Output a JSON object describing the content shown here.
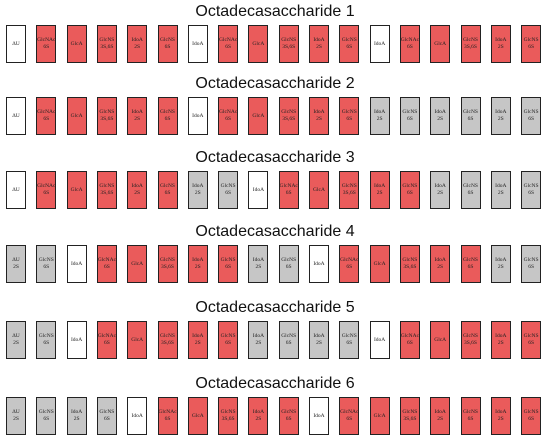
{
  "colors": {
    "red": "#ea5b5b",
    "gray": "#c6c6c6",
    "white": "#ffffff"
  },
  "rows": [
    {
      "title": "Octadecasaccharide 1",
      "units": [
        {
          "l1": "ΔU",
          "l2": "",
          "c": "white"
        },
        {
          "l1": "GlcNAc",
          "l2": "6S",
          "c": "red"
        },
        {
          "l1": "GlcA",
          "l2": "",
          "c": "red"
        },
        {
          "l1": "GlcNS",
          "l2": "3S,6S",
          "c": "red"
        },
        {
          "l1": "IdoA",
          "l2": "2S",
          "c": "red"
        },
        {
          "l1": "GlcNS",
          "l2": "6S",
          "c": "red"
        },
        {
          "l1": "IdoA",
          "l2": "",
          "c": "white"
        },
        {
          "l1": "GlcNAc",
          "l2": "6S",
          "c": "red"
        },
        {
          "l1": "GlcA",
          "l2": "",
          "c": "red"
        },
        {
          "l1": "GlcNS",
          "l2": "3S,6S",
          "c": "red"
        },
        {
          "l1": "IdoA",
          "l2": "2S",
          "c": "red"
        },
        {
          "l1": "GlcNS",
          "l2": "6S",
          "c": "red"
        },
        {
          "l1": "IdoA",
          "l2": "",
          "c": "white"
        },
        {
          "l1": "GlcNAc",
          "l2": "6S",
          "c": "red"
        },
        {
          "l1": "GlcA",
          "l2": "",
          "c": "red"
        },
        {
          "l1": "GlcNS",
          "l2": "3S,6S",
          "c": "red"
        },
        {
          "l1": "IdoA",
          "l2": "2S",
          "c": "red"
        },
        {
          "l1": "GlcNS",
          "l2": "6S",
          "c": "red"
        }
      ]
    },
    {
      "title": "Octadecasaccharide 2",
      "units": [
        {
          "l1": "ΔU",
          "l2": "",
          "c": "white"
        },
        {
          "l1": "GlcNAc",
          "l2": "6S",
          "c": "red"
        },
        {
          "l1": "GlcA",
          "l2": "",
          "c": "red"
        },
        {
          "l1": "GlcNS",
          "l2": "3S,6S",
          "c": "red"
        },
        {
          "l1": "IdoA",
          "l2": "2S",
          "c": "red"
        },
        {
          "l1": "GlcNS",
          "l2": "6S",
          "c": "red"
        },
        {
          "l1": "IdoA",
          "l2": "",
          "c": "white"
        },
        {
          "l1": "GlcNAc",
          "l2": "6S",
          "c": "red"
        },
        {
          "l1": "GlcA",
          "l2": "",
          "c": "red"
        },
        {
          "l1": "GlcNS",
          "l2": "3S,6S",
          "c": "red"
        },
        {
          "l1": "IdoA",
          "l2": "2S",
          "c": "red"
        },
        {
          "l1": "GlcNS",
          "l2": "6S",
          "c": "red"
        },
        {
          "l1": "IdoA",
          "l2": "2S",
          "c": "gray"
        },
        {
          "l1": "GlcNS",
          "l2": "6S",
          "c": "gray"
        },
        {
          "l1": "IdoA",
          "l2": "2S",
          "c": "gray"
        },
        {
          "l1": "GlcNS",
          "l2": "6S",
          "c": "gray"
        },
        {
          "l1": "IdoA",
          "l2": "2S",
          "c": "gray"
        },
        {
          "l1": "GlcNS",
          "l2": "6S",
          "c": "gray"
        }
      ]
    },
    {
      "title": "Octadecasaccharide 3",
      "units": [
        {
          "l1": "ΔU",
          "l2": "",
          "c": "white"
        },
        {
          "l1": "GlcNAc",
          "l2": "6S",
          "c": "red"
        },
        {
          "l1": "GlcA",
          "l2": "",
          "c": "red"
        },
        {
          "l1": "GlcNS",
          "l2": "3S,6S",
          "c": "red"
        },
        {
          "l1": "IdoA",
          "l2": "2S",
          "c": "red"
        },
        {
          "l1": "GlcNS",
          "l2": "6S",
          "c": "red"
        },
        {
          "l1": "IdoA",
          "l2": "2S",
          "c": "gray"
        },
        {
          "l1": "GlcNS",
          "l2": "6S",
          "c": "gray"
        },
        {
          "l1": "IdoA",
          "l2": "",
          "c": "white"
        },
        {
          "l1": "GlcNAc",
          "l2": "6S",
          "c": "red"
        },
        {
          "l1": "GlcA",
          "l2": "",
          "c": "red"
        },
        {
          "l1": "GlcNS",
          "l2": "3S,6S",
          "c": "red"
        },
        {
          "l1": "IdoA",
          "l2": "2S",
          "c": "red"
        },
        {
          "l1": "GlcNS",
          "l2": "6S",
          "c": "red"
        },
        {
          "l1": "IdoA",
          "l2": "2S",
          "c": "gray"
        },
        {
          "l1": "GlcNS",
          "l2": "6S",
          "c": "gray"
        },
        {
          "l1": "IdoA",
          "l2": "2S",
          "c": "gray"
        },
        {
          "l1": "GlcNS",
          "l2": "6S",
          "c": "gray"
        }
      ]
    },
    {
      "title": "Octadecasaccharide 4",
      "units": [
        {
          "l1": "ΔU",
          "l2": "2S",
          "c": "gray"
        },
        {
          "l1": "GlcNS",
          "l2": "6S",
          "c": "gray"
        },
        {
          "l1": "IdoA",
          "l2": "",
          "c": "white"
        },
        {
          "l1": "GlcNAc",
          "l2": "6S",
          "c": "red"
        },
        {
          "l1": "GlcA",
          "l2": "",
          "c": "red"
        },
        {
          "l1": "GlcNS",
          "l2": "3S,6S",
          "c": "red"
        },
        {
          "l1": "IdoA",
          "l2": "2S",
          "c": "red"
        },
        {
          "l1": "GlcNS",
          "l2": "6S",
          "c": "red"
        },
        {
          "l1": "IdoA",
          "l2": "2S",
          "c": "gray"
        },
        {
          "l1": "GlcNS",
          "l2": "6S",
          "c": "gray"
        },
        {
          "l1": "IdoA",
          "l2": "",
          "c": "white"
        },
        {
          "l1": "GlcNAc",
          "l2": "6S",
          "c": "red"
        },
        {
          "l1": "GlcA",
          "l2": "",
          "c": "red"
        },
        {
          "l1": "GlcNS",
          "l2": "3S,6S",
          "c": "red"
        },
        {
          "l1": "IdoA",
          "l2": "2S",
          "c": "red"
        },
        {
          "l1": "GlcNS",
          "l2": "6S",
          "c": "red"
        },
        {
          "l1": "IdoA",
          "l2": "2S",
          "c": "gray"
        },
        {
          "l1": "GlcNS",
          "l2": "6S",
          "c": "gray"
        }
      ]
    },
    {
      "title": "Octadecasaccharide 5",
      "units": [
        {
          "l1": "ΔU",
          "l2": "2S",
          "c": "gray"
        },
        {
          "l1": "GlcNS",
          "l2": "6S",
          "c": "gray"
        },
        {
          "l1": "IdoA",
          "l2": "",
          "c": "white"
        },
        {
          "l1": "GlcNAc",
          "l2": "6S",
          "c": "red"
        },
        {
          "l1": "GlcA",
          "l2": "",
          "c": "red"
        },
        {
          "l1": "GlcNS",
          "l2": "3S,6S",
          "c": "red"
        },
        {
          "l1": "IdoA",
          "l2": "2S",
          "c": "red"
        },
        {
          "l1": "GlcNS",
          "l2": "6S",
          "c": "red"
        },
        {
          "l1": "IdoA",
          "l2": "2S",
          "c": "gray"
        },
        {
          "l1": "GlcNS",
          "l2": "6S",
          "c": "gray"
        },
        {
          "l1": "IdoA",
          "l2": "2S",
          "c": "gray"
        },
        {
          "l1": "GlcNS",
          "l2": "6S",
          "c": "gray"
        },
        {
          "l1": "IdoA",
          "l2": "",
          "c": "white"
        },
        {
          "l1": "GlcNAc",
          "l2": "6S",
          "c": "red"
        },
        {
          "l1": "GlcA",
          "l2": "",
          "c": "red"
        },
        {
          "l1": "GlcNS",
          "l2": "3S,6S",
          "c": "red"
        },
        {
          "l1": "IdoA",
          "l2": "2S",
          "c": "red"
        },
        {
          "l1": "GlcNS",
          "l2": "6S",
          "c": "red"
        }
      ]
    },
    {
      "title": "Octadecasaccharide 6",
      "units": [
        {
          "l1": "ΔU",
          "l2": "2S",
          "c": "gray"
        },
        {
          "l1": "GlcNS",
          "l2": "6S",
          "c": "gray"
        },
        {
          "l1": "IdoA",
          "l2": "2S",
          "c": "gray"
        },
        {
          "l1": "GlcNS",
          "l2": "6S",
          "c": "gray"
        },
        {
          "l1": "IdoA",
          "l2": "",
          "c": "white"
        },
        {
          "l1": "GlcNAc",
          "l2": "6S",
          "c": "red"
        },
        {
          "l1": "GlcA",
          "l2": "",
          "c": "red"
        },
        {
          "l1": "GlcNS",
          "l2": "3S,6S",
          "c": "red"
        },
        {
          "l1": "IdoA",
          "l2": "2S",
          "c": "red"
        },
        {
          "l1": "GlcNS",
          "l2": "6S",
          "c": "red"
        },
        {
          "l1": "IdoA",
          "l2": "",
          "c": "white"
        },
        {
          "l1": "GlcNAc",
          "l2": "6S",
          "c": "red"
        },
        {
          "l1": "GlcA",
          "l2": "",
          "c": "red"
        },
        {
          "l1": "GlcNS",
          "l2": "3S,6S",
          "c": "red"
        },
        {
          "l1": "IdoA",
          "l2": "2S",
          "c": "red"
        },
        {
          "l1": "GlcNS",
          "l2": "6S",
          "c": "red"
        },
        {
          "l1": "IdoA",
          "l2": "2S",
          "c": "red"
        },
        {
          "l1": "GlcNS",
          "l2": "6S",
          "c": "red"
        }
      ]
    }
  ]
}
